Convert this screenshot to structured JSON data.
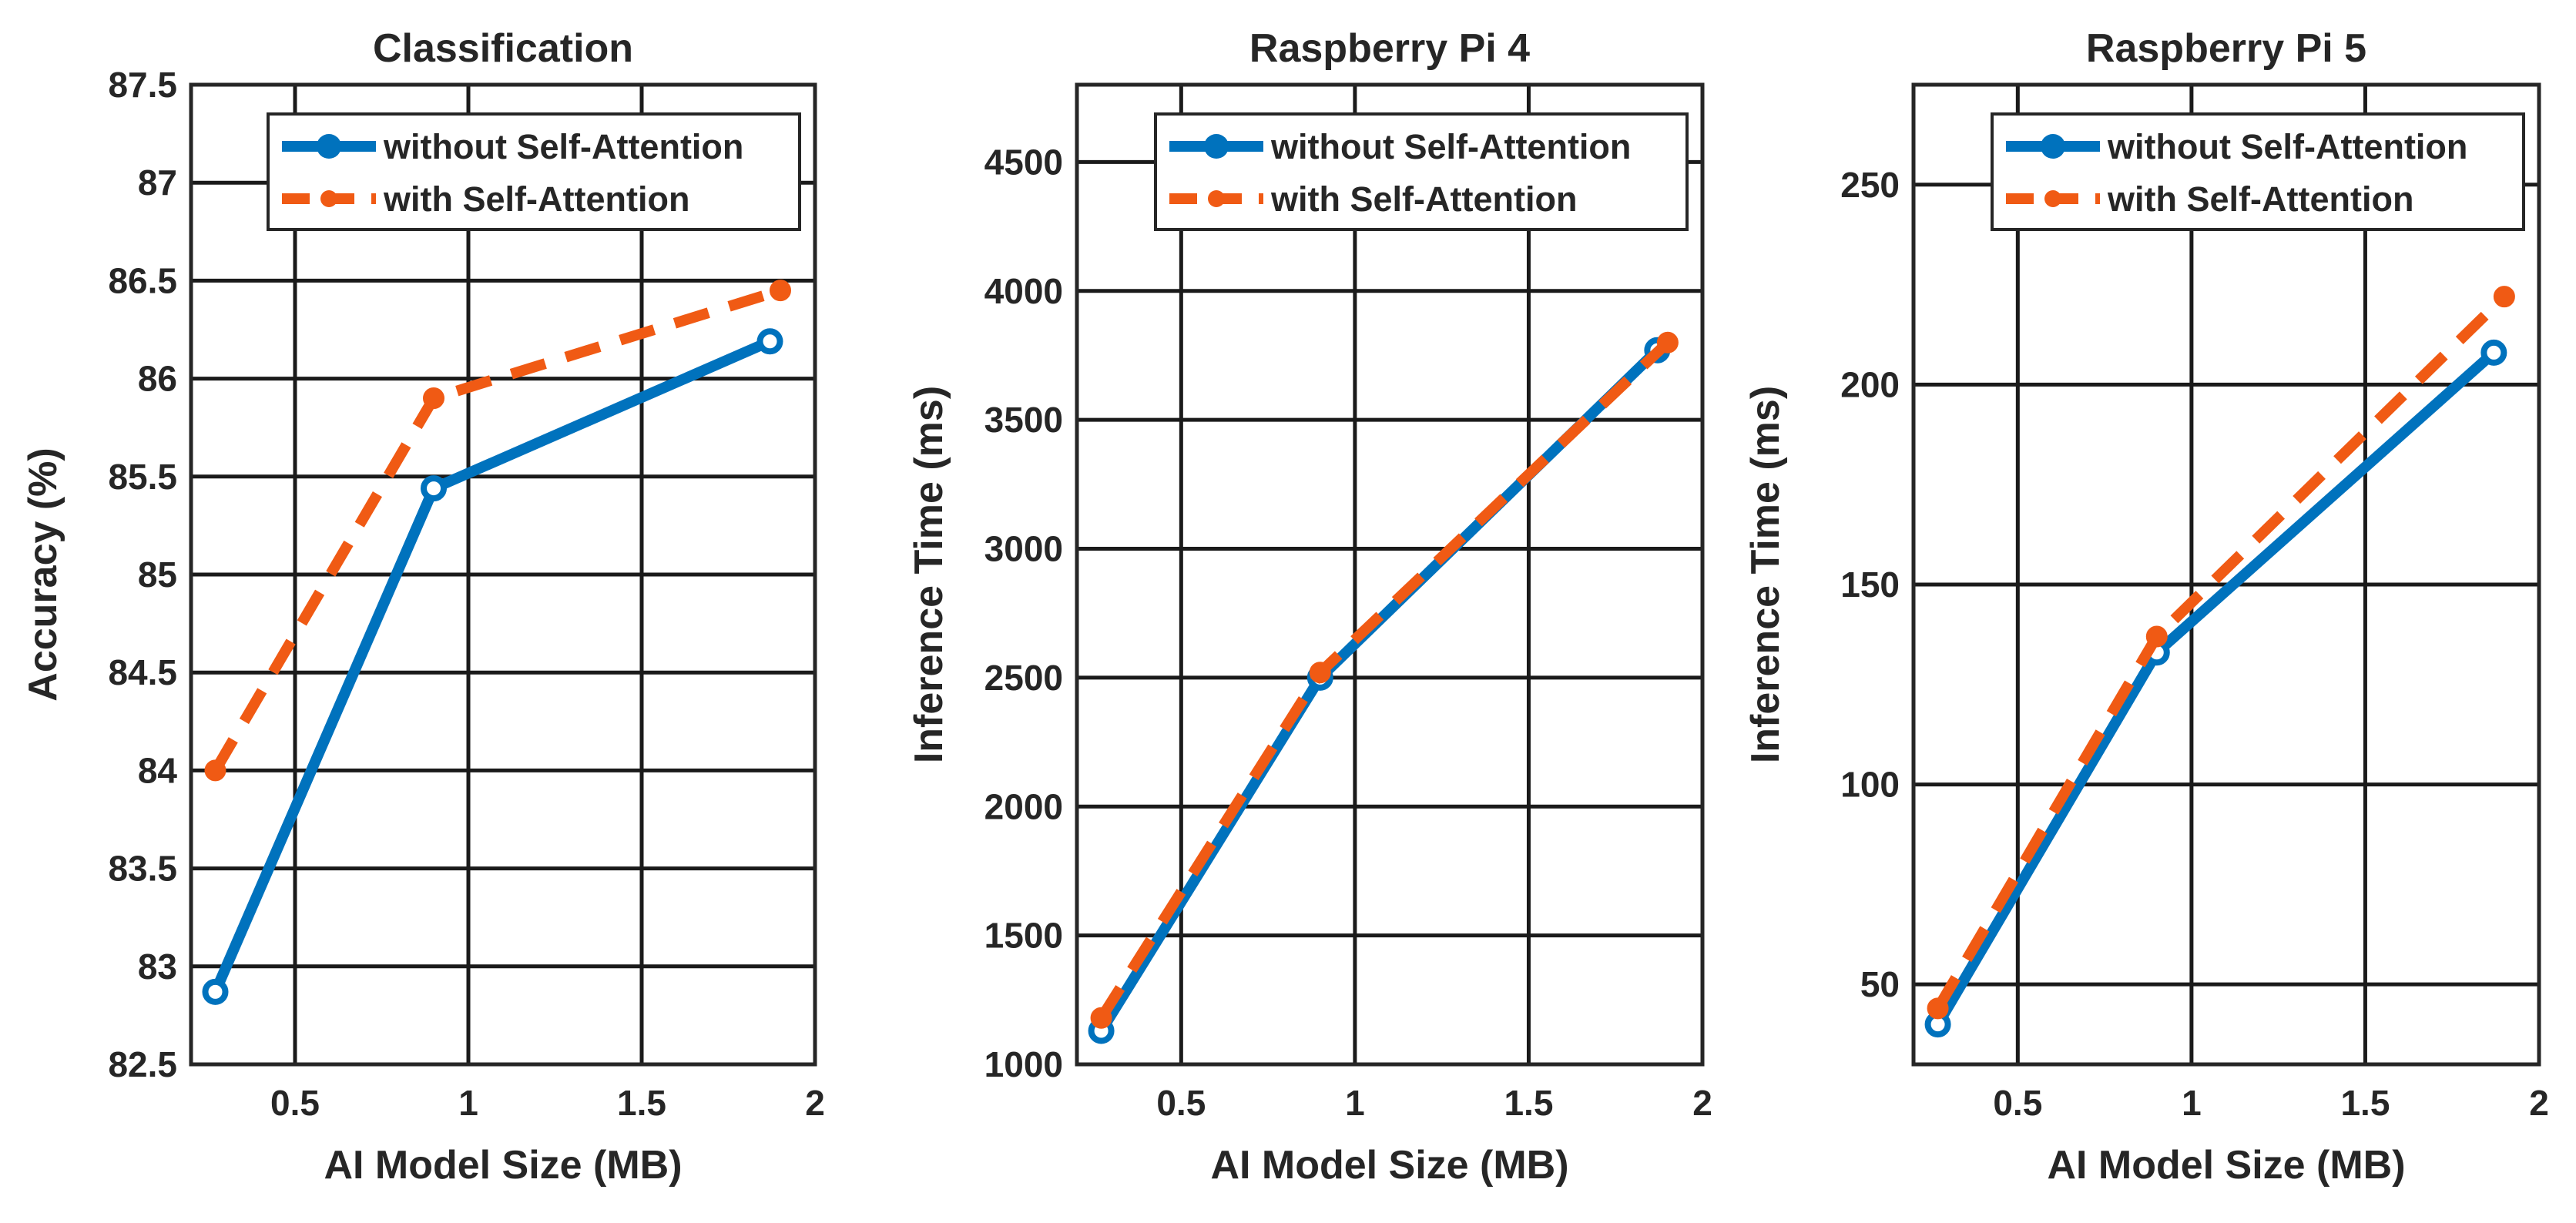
{
  "colors": {
    "without": "#0072BD",
    "with": "#F05A14",
    "axis": "#262626",
    "grid": "#1a1a1a",
    "background": "#ffffff"
  },
  "chart_data": [
    {
      "type": "line",
      "title": "Classification",
      "xlabel": "AI Model Size (MB)",
      "ylabel": "Accuracy (%)",
      "xlim": [
        0.2,
        2.0
      ],
      "ylim": [
        82.5,
        87.5
      ],
      "xticks": [
        0.5,
        1,
        1.5,
        2
      ],
      "xtick_labels": [
        "0.5",
        "1",
        "1.5",
        "2"
      ],
      "yticks": [
        82.5,
        83,
        83.5,
        84,
        84.5,
        85,
        85.5,
        86,
        86.5,
        87,
        87.5
      ],
      "ytick_labels": [
        "82.5",
        "83",
        "83.5",
        "84",
        "84.5",
        "85",
        "85.5",
        "86",
        "86.5",
        "87",
        "87.5"
      ],
      "grid": true,
      "legend_position": "top-right",
      "series": [
        {
          "name": "without Self-Attention",
          "style": "solid",
          "x": [
            0.27,
            0.9,
            1.87
          ],
          "values": [
            82.87,
            85.44,
            86.19
          ]
        },
        {
          "name": "with Self-Attention",
          "style": "dashed",
          "x": [
            0.27,
            0.9,
            1.9
          ],
          "values": [
            84.0,
            85.9,
            86.45
          ]
        }
      ]
    },
    {
      "type": "line",
      "title": "Raspberry Pi 4",
      "xlabel": "AI Model Size (MB)",
      "ylabel": "Inference Time (ms)",
      "xlim": [
        0.2,
        2.0
      ],
      "ylim": [
        1000,
        4800
      ],
      "xticks": [
        0.5,
        1,
        1.5,
        2
      ],
      "xtick_labels": [
        "0.5",
        "1",
        "1.5",
        "2"
      ],
      "yticks": [
        1000,
        1500,
        2000,
        2500,
        3000,
        3500,
        4000,
        4500
      ],
      "ytick_labels": [
        "1000",
        "1500",
        "2000",
        "2500",
        "3000",
        "3500",
        "4000",
        "4500"
      ],
      "grid": true,
      "legend_position": "top-right",
      "series": [
        {
          "name": "without Self-Attention",
          "style": "solid",
          "x": [
            0.27,
            0.9,
            1.87
          ],
          "values": [
            1130,
            2500,
            3770
          ]
        },
        {
          "name": "with Self-Attention",
          "style": "dashed",
          "x": [
            0.27,
            0.9,
            1.9
          ],
          "values": [
            1180,
            2520,
            3800
          ]
        }
      ]
    },
    {
      "type": "line",
      "title": "Raspberry Pi 5",
      "xlabel": "AI Model Size (MB)",
      "ylabel": "Inference Time (ms)",
      "xlim": [
        0.2,
        2.0
      ],
      "ylim": [
        30,
        275
      ],
      "xticks": [
        0.5,
        1,
        1.5,
        2
      ],
      "xtick_labels": [
        "0.5",
        "1",
        "1.5",
        "2"
      ],
      "yticks": [
        50,
        100,
        150,
        200,
        250
      ],
      "ytick_labels": [
        "50",
        "100",
        "150",
        "200",
        "250"
      ],
      "grid": true,
      "legend_position": "top-right",
      "series": [
        {
          "name": "without Self-Attention",
          "style": "solid",
          "x": [
            0.27,
            0.9,
            1.87
          ],
          "values": [
            40,
            133,
            208
          ]
        },
        {
          "name": "with Self-Attention",
          "style": "dashed",
          "x": [
            0.27,
            0.9,
            1.9
          ],
          "values": [
            44,
            137,
            222
          ]
        }
      ]
    }
  ]
}
